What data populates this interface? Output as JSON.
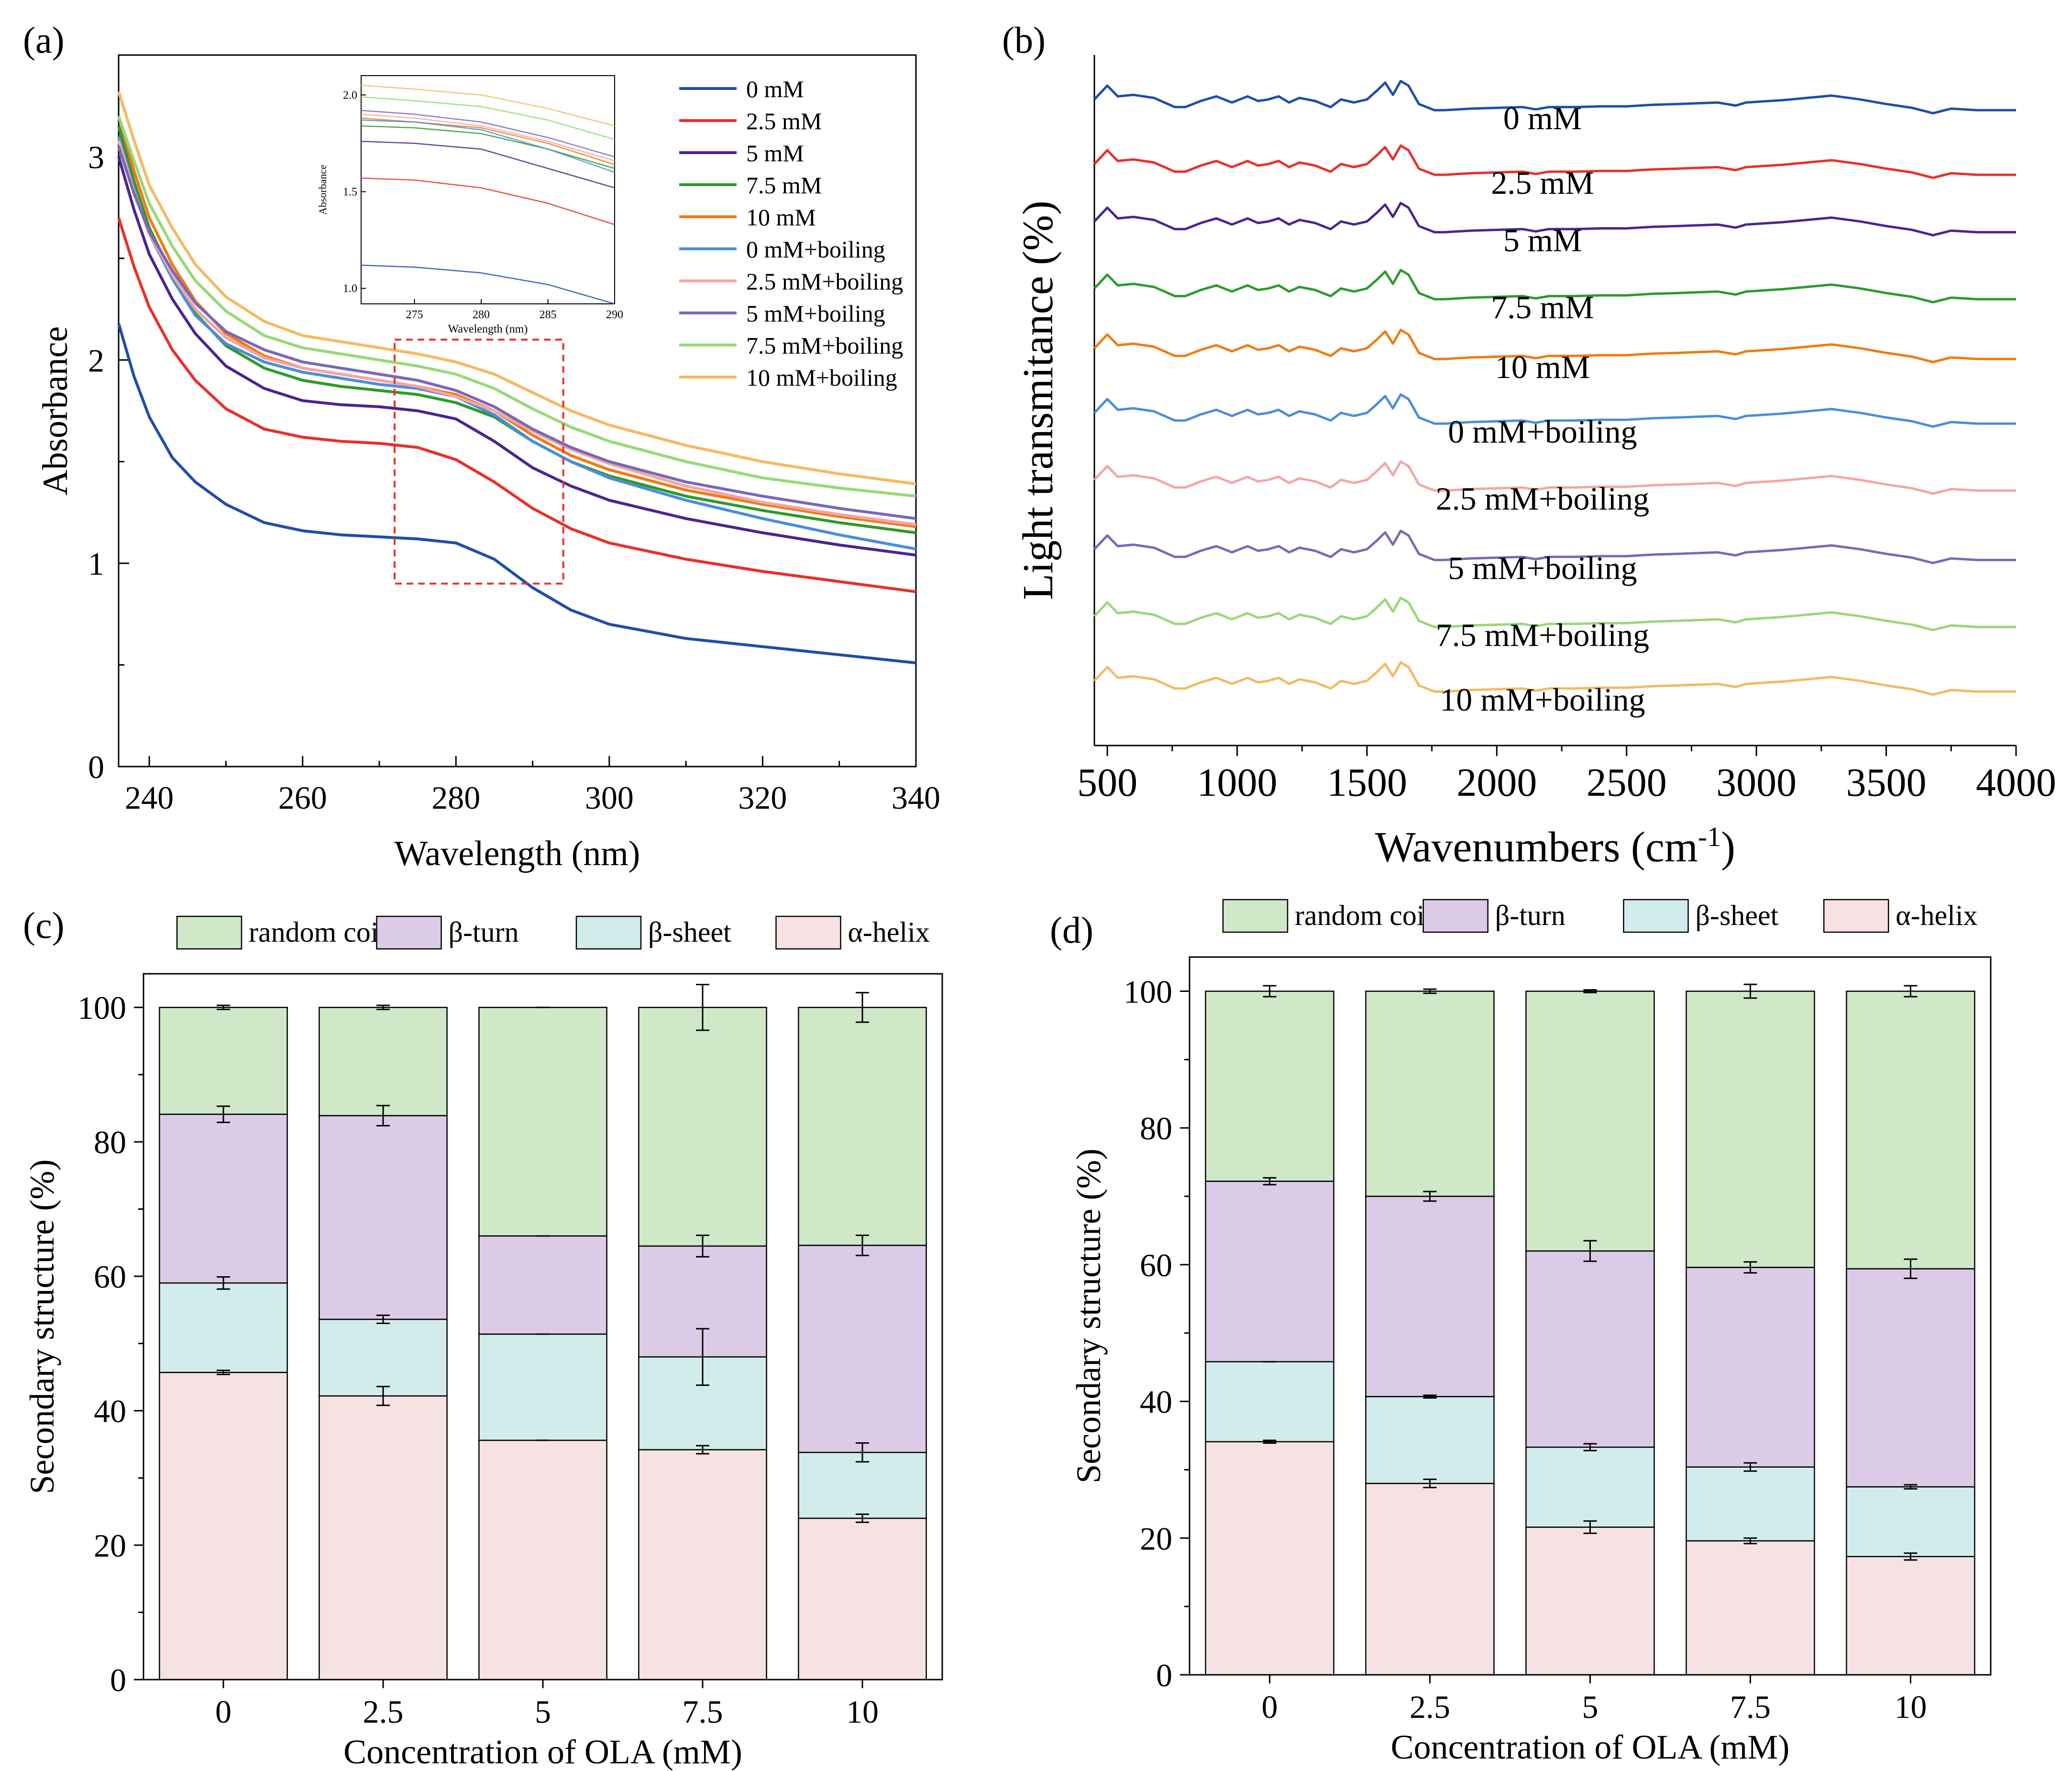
{
  "colors": {
    "c0": "#1f4ea8",
    "c25": "#e8302a",
    "c5": "#4a2590",
    "c75": "#2e9a2c",
    "c10": "#f07b12",
    "b0": "#4a8ed8",
    "b25": "#f4a5a5",
    "b5": "#7a68b8",
    "b75": "#98d878",
    "b10": "#f4ba62",
    "random_coil": "#cfe8c7",
    "beta_turn": "#dccbe6",
    "beta_sheet": "#d2ecec",
    "alpha_helix": "#f6e2e2"
  },
  "chart_data": [
    {
      "panel": "(a)",
      "type": "line",
      "xlabel": "Wavelength (nm)",
      "ylabel": "Absorbance",
      "xlim": [
        236,
        340
      ],
      "ylim": [
        0,
        3.5
      ],
      "xticks": [
        "240",
        "260",
        "280",
        "300",
        "320",
        "340"
      ],
      "yticks": [
        "0",
        "1",
        "2",
        "3"
      ],
      "legend_position": "top-right",
      "series": [
        {
          "name": "0  mM",
          "color_key": "c0",
          "x": [
            236,
            238,
            240,
            243,
            246,
            250,
            255,
            260,
            265,
            270,
            275,
            280,
            285,
            290,
            295,
            300,
            310,
            320,
            330,
            340
          ],
          "y": [
            2.18,
            1.92,
            1.72,
            1.52,
            1.4,
            1.29,
            1.2,
            1.16,
            1.14,
            1.13,
            1.12,
            1.1,
            1.02,
            0.88,
            0.77,
            0.7,
            0.63,
            0.59,
            0.55,
            0.51
          ]
        },
        {
          "name": "2.5 mM",
          "color_key": "c25",
          "x": [
            236,
            238,
            240,
            243,
            246,
            250,
            255,
            260,
            265,
            270,
            275,
            280,
            285,
            290,
            295,
            300,
            310,
            320,
            330,
            340
          ],
          "y": [
            2.7,
            2.46,
            2.26,
            2.05,
            1.9,
            1.76,
            1.66,
            1.62,
            1.6,
            1.59,
            1.57,
            1.51,
            1.4,
            1.27,
            1.17,
            1.1,
            1.02,
            0.96,
            0.91,
            0.86
          ]
        },
        {
          "name": "5 mM",
          "color_key": "c5",
          "x": [
            236,
            238,
            240,
            243,
            246,
            250,
            255,
            260,
            265,
            270,
            275,
            280,
            285,
            290,
            295,
            300,
            310,
            320,
            330,
            340
          ],
          "y": [
            3.0,
            2.74,
            2.52,
            2.3,
            2.13,
            1.97,
            1.86,
            1.8,
            1.78,
            1.77,
            1.75,
            1.71,
            1.6,
            1.47,
            1.38,
            1.31,
            1.22,
            1.15,
            1.09,
            1.04
          ]
        },
        {
          "name": "7.5 mM",
          "color_key": "c75",
          "x": [
            236,
            238,
            240,
            243,
            246,
            250,
            255,
            260,
            265,
            270,
            275,
            280,
            285,
            290,
            295,
            300,
            310,
            320,
            330,
            340
          ],
          "y": [
            3.15,
            2.88,
            2.65,
            2.42,
            2.23,
            2.07,
            1.96,
            1.9,
            1.87,
            1.85,
            1.83,
            1.79,
            1.72,
            1.6,
            1.5,
            1.43,
            1.33,
            1.26,
            1.2,
            1.15
          ]
        },
        {
          "name": "10 mM",
          "color_key": "c10",
          "x": [
            236,
            238,
            240,
            243,
            246,
            250,
            255,
            260,
            265,
            270,
            275,
            280,
            285,
            290,
            295,
            300,
            310,
            320,
            330,
            340
          ],
          "y": [
            3.2,
            2.93,
            2.7,
            2.47,
            2.29,
            2.13,
            2.02,
            1.96,
            1.93,
            1.9,
            1.87,
            1.83,
            1.75,
            1.63,
            1.53,
            1.46,
            1.36,
            1.29,
            1.23,
            1.18
          ]
        },
        {
          "name": "0 mM+boiling",
          "color_key": "b0",
          "x": [
            236,
            238,
            240,
            243,
            246,
            250,
            255,
            260,
            265,
            270,
            275,
            280,
            285,
            290,
            295,
            300,
            310,
            320,
            330,
            340
          ],
          "y": [
            3.1,
            2.84,
            2.62,
            2.4,
            2.22,
            2.08,
            1.99,
            1.94,
            1.91,
            1.88,
            1.86,
            1.82,
            1.73,
            1.6,
            1.5,
            1.42,
            1.31,
            1.22,
            1.14,
            1.07
          ]
        },
        {
          "name": "2.5 mM+boiling",
          "color_key": "b25",
          "x": [
            236,
            238,
            240,
            243,
            246,
            250,
            255,
            260,
            265,
            270,
            275,
            280,
            285,
            290,
            295,
            300,
            310,
            320,
            330,
            340
          ],
          "y": [
            3.08,
            2.83,
            2.62,
            2.42,
            2.25,
            2.11,
            2.01,
            1.96,
            1.93,
            1.9,
            1.87,
            1.82,
            1.75,
            1.65,
            1.56,
            1.49,
            1.38,
            1.3,
            1.24,
            1.19
          ]
        },
        {
          "name": "5 mM+boiling",
          "color_key": "b5",
          "x": [
            236,
            238,
            240,
            243,
            246,
            250,
            255,
            260,
            265,
            270,
            275,
            280,
            285,
            290,
            295,
            300,
            310,
            320,
            330,
            340
          ],
          "y": [
            3.05,
            2.82,
            2.63,
            2.44,
            2.28,
            2.14,
            2.05,
            1.99,
            1.96,
            1.93,
            1.9,
            1.85,
            1.77,
            1.66,
            1.57,
            1.5,
            1.4,
            1.33,
            1.27,
            1.22
          ]
        },
        {
          "name": "7.5 mM+boiling",
          "color_key": "b75",
          "x": [
            236,
            238,
            240,
            243,
            246,
            250,
            255,
            260,
            265,
            270,
            275,
            280,
            285,
            290,
            295,
            300,
            310,
            320,
            330,
            340
          ],
          "y": [
            3.2,
            2.98,
            2.77,
            2.56,
            2.39,
            2.24,
            2.12,
            2.06,
            2.03,
            2.0,
            1.97,
            1.93,
            1.86,
            1.76,
            1.67,
            1.6,
            1.5,
            1.42,
            1.37,
            1.33
          ]
        },
        {
          "name": "10 mM+boiling",
          "color_key": "b10",
          "x": [
            236,
            238,
            240,
            243,
            246,
            250,
            255,
            260,
            265,
            270,
            275,
            280,
            285,
            290,
            295,
            300,
            310,
            320,
            330,
            340
          ],
          "y": [
            3.32,
            3.08,
            2.86,
            2.65,
            2.47,
            2.31,
            2.19,
            2.12,
            2.09,
            2.06,
            2.03,
            1.99,
            1.93,
            1.84,
            1.75,
            1.68,
            1.58,
            1.5,
            1.44,
            1.39
          ]
        }
      ],
      "zoom_box": {
        "x": [
          272,
          294
        ],
        "y": [
          0.9,
          2.1
        ]
      },
      "inset": {
        "type": "line",
        "xlabel": "Wavelength (nm)",
        "ylabel": "Absorbance",
        "xlim": [
          271,
          290
        ],
        "ylim": [
          0.92,
          2.1
        ],
        "xticks": [
          "275",
          "280",
          "285",
          "290"
        ],
        "yticks": [
          "1.0",
          "1.5",
          "2.0"
        ],
        "series": [
          {
            "color_key": "c0",
            "x": [
              271,
              275,
              280,
              285,
              290
            ],
            "y": [
              1.12,
              1.11,
              1.08,
              1.02,
              0.92
            ]
          },
          {
            "color_key": "c25",
            "x": [
              271,
              275,
              280,
              285,
              290
            ],
            "y": [
              1.57,
              1.56,
              1.52,
              1.44,
              1.33
            ]
          },
          {
            "color_key": "c5",
            "x": [
              271,
              275,
              280,
              285,
              290
            ],
            "y": [
              1.76,
              1.75,
              1.72,
              1.62,
              1.52
            ]
          },
          {
            "color_key": "c75",
            "x": [
              271,
              275,
              280,
              285,
              290
            ],
            "y": [
              1.84,
              1.83,
              1.8,
              1.72,
              1.62
            ]
          },
          {
            "color_key": "c10",
            "x": [
              271,
              275,
              280,
              285,
              290
            ],
            "y": [
              1.88,
              1.86,
              1.83,
              1.75,
              1.64
            ]
          },
          {
            "color_key": "b0",
            "x": [
              271,
              275,
              280,
              285,
              290
            ],
            "y": [
              1.87,
              1.86,
              1.82,
              1.72,
              1.6
            ]
          },
          {
            "color_key": "b25",
            "x": [
              271,
              275,
              280,
              285,
              290
            ],
            "y": [
              1.9,
              1.88,
              1.84,
              1.76,
              1.66
            ]
          },
          {
            "color_key": "b5",
            "x": [
              271,
              275,
              280,
              285,
              290
            ],
            "y": [
              1.92,
              1.9,
              1.86,
              1.78,
              1.68
            ]
          },
          {
            "color_key": "b75",
            "x": [
              271,
              275,
              280,
              285,
              290
            ],
            "y": [
              1.99,
              1.97,
              1.94,
              1.87,
              1.77
            ]
          },
          {
            "color_key": "b10",
            "x": [
              271,
              275,
              280,
              285,
              290
            ],
            "y": [
              2.05,
              2.03,
              2.0,
              1.93,
              1.84
            ]
          }
        ]
      }
    },
    {
      "panel": "(b)",
      "type": "line",
      "xlabel": "Wavenumbers (cm",
      "xlabel_sup": "-1",
      "xlabel_close": ")",
      "ylabel": "Light transmitance (%)",
      "xlim": [
        450,
        4000
      ],
      "xticks": [
        "500",
        "1000",
        "1500",
        "2000",
        "2500",
        "3000",
        "3500",
        "4000"
      ],
      "y_units": "arbitrary, vertically offset traces",
      "series": [
        {
          "name": "0 mM",
          "color_key": "c0"
        },
        {
          "name": "2.5 mM",
          "color_key": "c25"
        },
        {
          "name": "5 mM",
          "color_key": "c5"
        },
        {
          "name": "7.5 mM",
          "color_key": "c75"
        },
        {
          "name": "10 mM",
          "color_key": "c10"
        },
        {
          "name": "0 mM+boiling",
          "color_key": "b0"
        },
        {
          "name": "2.5 mM+boiling",
          "color_key": "b25"
        },
        {
          "name": "5 mM+boiling",
          "color_key": "b5"
        },
        {
          "name": "7.5 mM+boiling",
          "color_key": "b75"
        },
        {
          "name": "10 mM+boiling",
          "color_key": "b10"
        }
      ],
      "profile": {
        "x": [
          450,
          500,
          540,
          600,
          680,
          760,
          800,
          860,
          920,
          980,
          1040,
          1080,
          1120,
          1160,
          1200,
          1240,
          1300,
          1360,
          1400,
          1450,
          1500,
          1540,
          1570,
          1600,
          1630,
          1660,
          1700,
          1760,
          1800,
          1900,
          2000,
          2100,
          2150,
          2200,
          2300,
          2400,
          2500,
          2600,
          2700,
          2850,
          2920,
          2960,
          3100,
          3290,
          3400,
          3500,
          3600,
          3680,
          3750,
          3850,
          4000
        ],
        "y": [
          -8,
          10,
          -4,
          -2,
          -6,
          -18,
          -18,
          -10,
          -4,
          -12,
          -4,
          -10,
          -8,
          -4,
          -12,
          -6,
          -10,
          -18,
          -8,
          -12,
          -8,
          4,
          14,
          -2,
          16,
          10,
          -14,
          -22,
          -22,
          -20,
          -19,
          -18,
          -21,
          -18,
          -18,
          -17,
          -17,
          -15,
          -14,
          -12,
          -16,
          -12,
          -9,
          -3,
          -8,
          -14,
          -19,
          -26,
          -20,
          -22,
          -22
        ]
      },
      "offsets": [
        0,
        1.35,
        2.55,
        3.95,
        5.2,
        6.55,
        7.95,
        9.4,
        10.8,
        12.15
      ]
    },
    {
      "panel": "(c)",
      "type": "bar",
      "stacked": true,
      "xlabel": "Concentration of OLA (mM)",
      "ylabel": "Secondary structure (%)",
      "ylim": [
        0,
        105
      ],
      "yticks": [
        "0",
        "20",
        "40",
        "60",
        "80",
        "100"
      ],
      "categories": [
        "0",
        "2.5",
        "5",
        "7.5",
        "10"
      ],
      "legend": [
        "random coil",
        "β-turn",
        "β-sheet",
        "α-helix"
      ],
      "series": [
        {
          "name": "α-helix",
          "color_key": "alpha_helix",
          "top": [
            45.7,
            42.2,
            35.6,
            34.2,
            24.0
          ],
          "err": [
            0.3,
            1.4,
            0.0,
            0.6,
            0.6
          ]
        },
        {
          "name": "β-sheet",
          "color_key": "beta_sheet",
          "top": [
            59.0,
            53.6,
            51.4,
            48.0,
            33.8
          ],
          "err": [
            0.9,
            0.6,
            0.0,
            4.2,
            1.4
          ]
        },
        {
          "name": "β-turn",
          "color_key": "beta_turn",
          "top": [
            84.1,
            83.9,
            66.0,
            64.5,
            64.6
          ],
          "err": [
            1.2,
            1.5,
            0.0,
            1.6,
            1.5
          ]
        },
        {
          "name": "random coil",
          "color_key": "random_coil",
          "top": [
            100,
            100,
            100,
            100,
            100
          ],
          "err": [
            0.3,
            0.3,
            0.0,
            3.4,
            2.2
          ]
        }
      ]
    },
    {
      "panel": "(d)",
      "type": "bar",
      "stacked": true,
      "xlabel": "Concentration of OLA (mM)",
      "ylabel": "Secondary structure (%)",
      "ylim": [
        0,
        105
      ],
      "yticks": [
        "0",
        "20",
        "40",
        "60",
        "80",
        "100"
      ],
      "categories": [
        "0",
        "2.5",
        "5",
        "7.5",
        "10"
      ],
      "legend": [
        "random coil",
        "β-turn",
        "β-sheet",
        "α-helix"
      ],
      "series": [
        {
          "name": "α-helix",
          "color_key": "alpha_helix",
          "top": [
            34.1,
            28.0,
            21.6,
            19.6,
            17.3
          ],
          "err": [
            0.2,
            0.6,
            0.9,
            0.4,
            0.5
          ]
        },
        {
          "name": "β-sheet",
          "color_key": "beta_sheet",
          "top": [
            45.8,
            40.7,
            33.3,
            30.4,
            27.5
          ],
          "err": [
            0.0,
            0.2,
            0.5,
            0.6,
            0.3
          ]
        },
        {
          "name": "β-turn",
          "color_key": "beta_turn",
          "top": [
            72.2,
            70.0,
            62.0,
            59.6,
            59.4
          ],
          "err": [
            0.5,
            0.7,
            1.5,
            0.8,
            1.4
          ]
        },
        {
          "name": "random coil",
          "color_key": "random_coil",
          "top": [
            100,
            100,
            100,
            100,
            100
          ],
          "err": [
            0.8,
            0.3,
            0.2,
            1.0,
            0.8
          ]
        }
      ]
    }
  ]
}
